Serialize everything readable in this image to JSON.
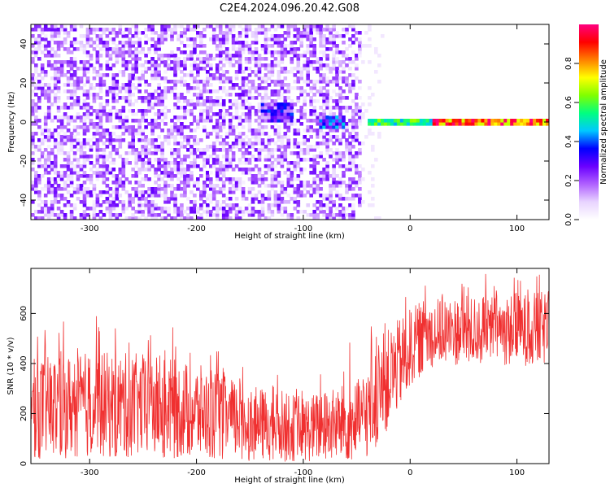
{
  "title": "C2E4.2024.096.20.42.G08",
  "chart_data": [
    {
      "type": "heatmap",
      "xlabel": "Height of straight line (km)",
      "ylabel": "Frequency (Hz)",
      "xlim": [
        -355,
        130
      ],
      "ylim": [
        -50,
        50
      ],
      "xticks": [
        -300,
        -200,
        -100,
        0,
        100
      ],
      "yticks": [
        -40,
        -20,
        0,
        20,
        40
      ],
      "grid": false,
      "colorbar": {
        "label": "Normalized spectral amplitude",
        "range": [
          0,
          1
        ],
        "ticks": [
          0.0,
          0.2,
          0.4,
          0.6,
          0.8
        ],
        "colormap": [
          "#ffffff",
          "#e8d4ff",
          "#b060ff",
          "#6a00ff",
          "#0000ff",
          "#00c8ff",
          "#00ff80",
          "#80ff00",
          "#ffff00",
          "#ff8000",
          "#ff0000",
          "#ff0080"
        ]
      },
      "regions": [
        {
          "x": [
            -355,
            -45
          ],
          "freq": [
            -50,
            50
          ],
          "amplitude": 0.1
        },
        {
          "x": [
            -45,
            -25
          ],
          "freq": [
            -50,
            50
          ],
          "amplitude": 0.03
        },
        {
          "x": [
            -140,
            -110
          ],
          "freq": [
            0,
            10
          ],
          "amplitude": 0.25
        },
        {
          "x": [
            -85,
            -60
          ],
          "freq": [
            -3,
            4
          ],
          "amplitude": 0.3
        },
        {
          "x": [
            -40,
            20
          ],
          "freq": [
            -2,
            2
          ],
          "amplitude": 0.55
        },
        {
          "x": [
            20,
            130
          ],
          "freq": [
            -1,
            1
          ],
          "amplitude": 0.85
        }
      ]
    },
    {
      "type": "line",
      "xlabel": "Height of straight line (km)",
      "ylabel": "SNR (10 * v/v)",
      "xlim": [
        -355,
        130
      ],
      "ylim": [
        0,
        780
      ],
      "xticks": [
        -300,
        -200,
        -100,
        0,
        100
      ],
      "yticks": [
        0,
        200,
        400,
        600
      ],
      "grid": false,
      "color": "#f03030",
      "envelope": {
        "x": [
          -355,
          -300,
          -250,
          -200,
          -150,
          -100,
          -50,
          -35,
          -25,
          -15,
          -5,
          0,
          10,
          20,
          40,
          60,
          80,
          100,
          130
        ],
        "y_low": [
          20,
          20,
          20,
          15,
          10,
          5,
          5,
          30,
          100,
          180,
          250,
          300,
          350,
          380,
          390,
          390,
          390,
          390,
          390
        ],
        "y_high": [
          420,
          450,
          440,
          400,
          310,
          270,
          330,
          420,
          520,
          560,
          600,
          620,
          650,
          660,
          670,
          670,
          680,
          680,
          690
        ],
        "y_spike_max": [
          530,
          600,
          600,
          520,
          380,
          360,
          560,
          650,
          680,
          700,
          700,
          700,
          720,
          740,
          760,
          760,
          760,
          760,
          760
        ]
      }
    }
  ]
}
